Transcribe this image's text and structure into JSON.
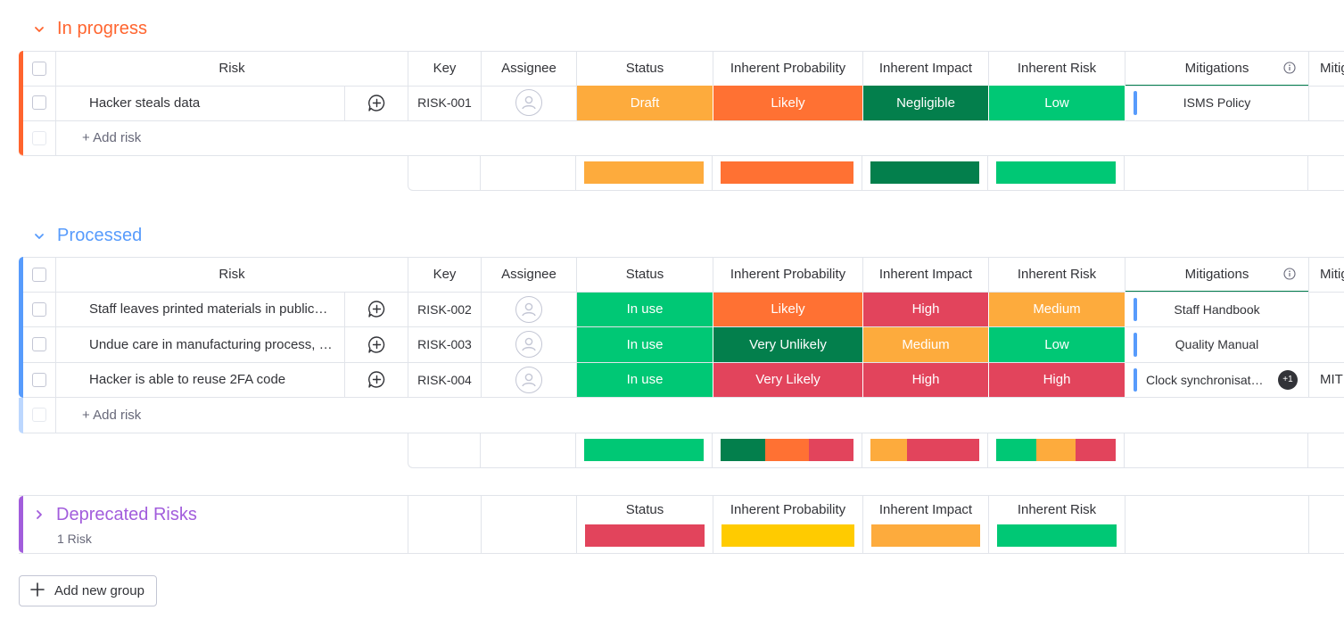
{
  "colors": {
    "orange": "#fdab3d",
    "dark_orange": "#ff7133",
    "dark_green": "#037f4c",
    "green": "#00c875",
    "red": "#e2445c",
    "yellow": "#ffcb00",
    "in_progress": "#ff642e",
    "processed": "#579bfc",
    "deprecated": "#a25ddc"
  },
  "columns": {
    "risk": "Risk",
    "key": "Key",
    "assignee": "Assignee",
    "status": "Status",
    "prob": "Inherent Probability",
    "impact": "Inherent Impact",
    "irisk": "Inherent Risk",
    "mitigations": "Mitigations",
    "mit2": "Mitig"
  },
  "add_risk": "+ Add risk",
  "add_group": "Add new group",
  "groups": [
    {
      "title": "In progress",
      "color": "#ff642e",
      "rows": [
        {
          "risk": "Hacker steals data",
          "key": "RISK-001",
          "status": "Draft",
          "status_color": "#fdab3d",
          "prob": "Likely",
          "prob_color": "#ff7133",
          "impact": "Negligible",
          "impact_color": "#037f4c",
          "irisk": "Low",
          "irisk_color": "#00c875",
          "mitigation": "ISMS Policy"
        }
      ],
      "summary": {
        "status": [
          {
            "color": "#fdab3d",
            "share": 1
          }
        ],
        "prob": [
          {
            "color": "#ff7133",
            "share": 1
          }
        ],
        "impact": [
          {
            "color": "#037f4c",
            "share": 1
          }
        ],
        "irisk": [
          {
            "color": "#00c875",
            "share": 1
          }
        ]
      }
    },
    {
      "title": "Processed",
      "color": "#579bfc",
      "rows": [
        {
          "risk": "Staff leaves printed materials in public…",
          "key": "RISK-002",
          "status": "In use",
          "status_color": "#00c875",
          "prob": "Likely",
          "prob_color": "#ff7133",
          "impact": "High",
          "impact_color": "#e2445c",
          "irisk": "Medium",
          "irisk_color": "#fdab3d",
          "mitigation": "Staff Handbook"
        },
        {
          "risk": "Undue care in manufacturing process, …",
          "key": "RISK-003",
          "status": "In use",
          "status_color": "#00c875",
          "prob": "Very Unlikely",
          "prob_color": "#037f4c",
          "impact": "Medium",
          "impact_color": "#fdab3d",
          "irisk": "Low",
          "irisk_color": "#00c875",
          "mitigation": "Quality Manual"
        },
        {
          "risk": "Hacker is able to reuse 2FA code",
          "key": "RISK-004",
          "status": "In use",
          "status_color": "#00c875",
          "prob": "Very Likely",
          "prob_color": "#e2445c",
          "impact": "High",
          "impact_color": "#e2445c",
          "irisk": "High",
          "irisk_color": "#e2445c",
          "mitigation": "Clock synchronisat…",
          "extra": "+1",
          "mit2": "MIT"
        }
      ],
      "summary": {
        "status": [
          {
            "color": "#00c875",
            "share": 1
          }
        ],
        "prob": [
          {
            "color": "#037f4c",
            "share": 0.3333
          },
          {
            "color": "#ff7133",
            "share": 0.3333
          },
          {
            "color": "#e2445c",
            "share": 0.3334
          }
        ],
        "impact": [
          {
            "color": "#fdab3d",
            "share": 0.3333
          },
          {
            "color": "#e2445c",
            "share": 0.6667
          }
        ],
        "irisk": [
          {
            "color": "#00c875",
            "share": 0.3333
          },
          {
            "color": "#fdab3d",
            "share": 0.3333
          },
          {
            "color": "#e2445c",
            "share": 0.3334
          }
        ]
      }
    }
  ],
  "deprecated": {
    "title": "Deprecated Risks",
    "count_label": "1 Risk",
    "color": "#a25ddc",
    "labels": {
      "status": "Status",
      "prob": "Inherent Probability",
      "impact": "Inherent Impact",
      "irisk": "Inherent Risk"
    },
    "summary": {
      "status": [
        {
          "color": "#e2445c",
          "share": 1
        }
      ],
      "prob": [
        {
          "color": "#ffcb00",
          "share": 1
        }
      ],
      "impact": [
        {
          "color": "#fdab3d",
          "share": 1
        }
      ],
      "irisk": [
        {
          "color": "#00c875",
          "share": 1
        }
      ]
    }
  }
}
